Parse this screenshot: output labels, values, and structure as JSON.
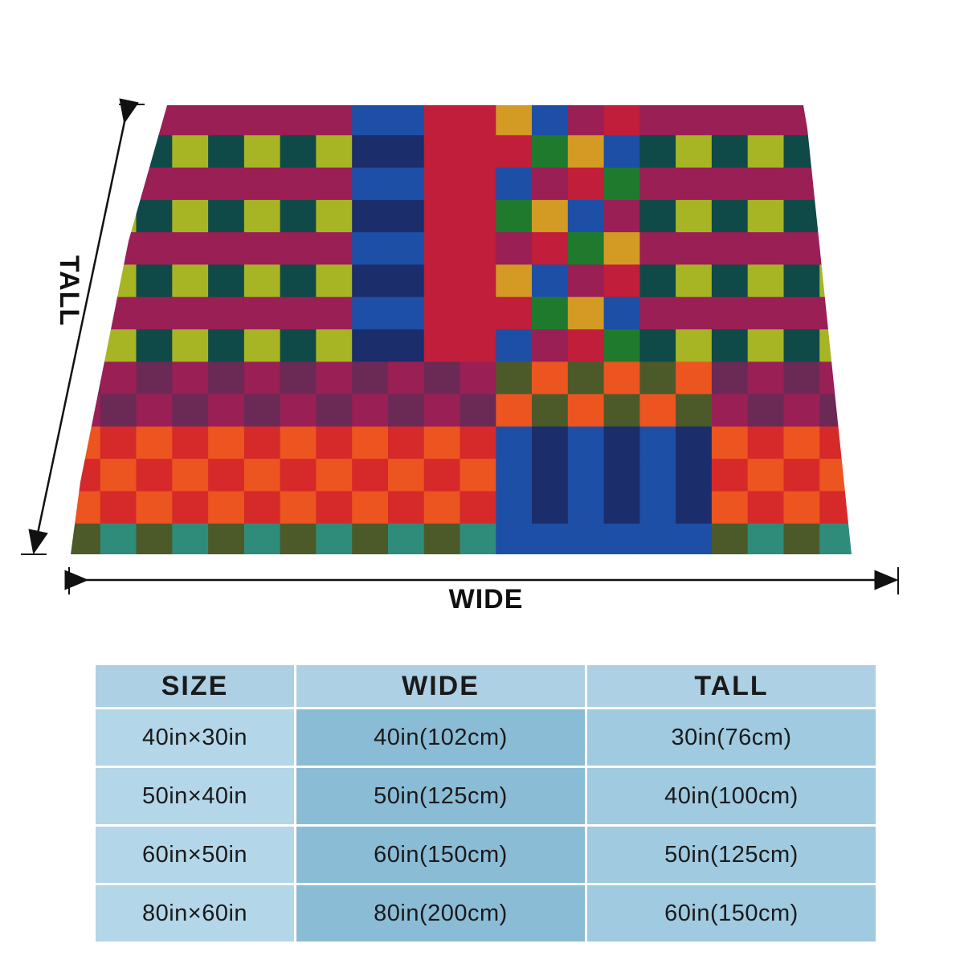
{
  "blanket": {
    "tall_label": "TALL",
    "wide_label": "WIDE",
    "palette": {
      "lime": "#a7b524",
      "teal": "#0f4a48",
      "magenta": "#9a1f55",
      "plum": "#6a2a55",
      "crimson": "#c01e3a",
      "red": "#d62a2a",
      "orange": "#ec5420",
      "blue": "#1d4fa6",
      "navy": "#1b2d6b",
      "green": "#1f7a2e",
      "gold": "#d39a24",
      "olive": "#4c5a2a",
      "sea": "#2f8c7a"
    }
  },
  "table": {
    "headers": [
      "SIZE",
      "WIDE",
      "TALL"
    ],
    "rows": [
      {
        "size": "40in×30in",
        "wide": "40in(102cm)",
        "tall": "30in(76cm)"
      },
      {
        "size": "50in×40in",
        "wide": "50in(125cm)",
        "tall": "40in(100cm)"
      },
      {
        "size": "60in×50in",
        "wide": "60in(150cm)",
        "tall": "50in(125cm)"
      },
      {
        "size": "80in×60in",
        "wide": "80in(200cm)",
        "tall": "60in(150cm)"
      }
    ]
  }
}
